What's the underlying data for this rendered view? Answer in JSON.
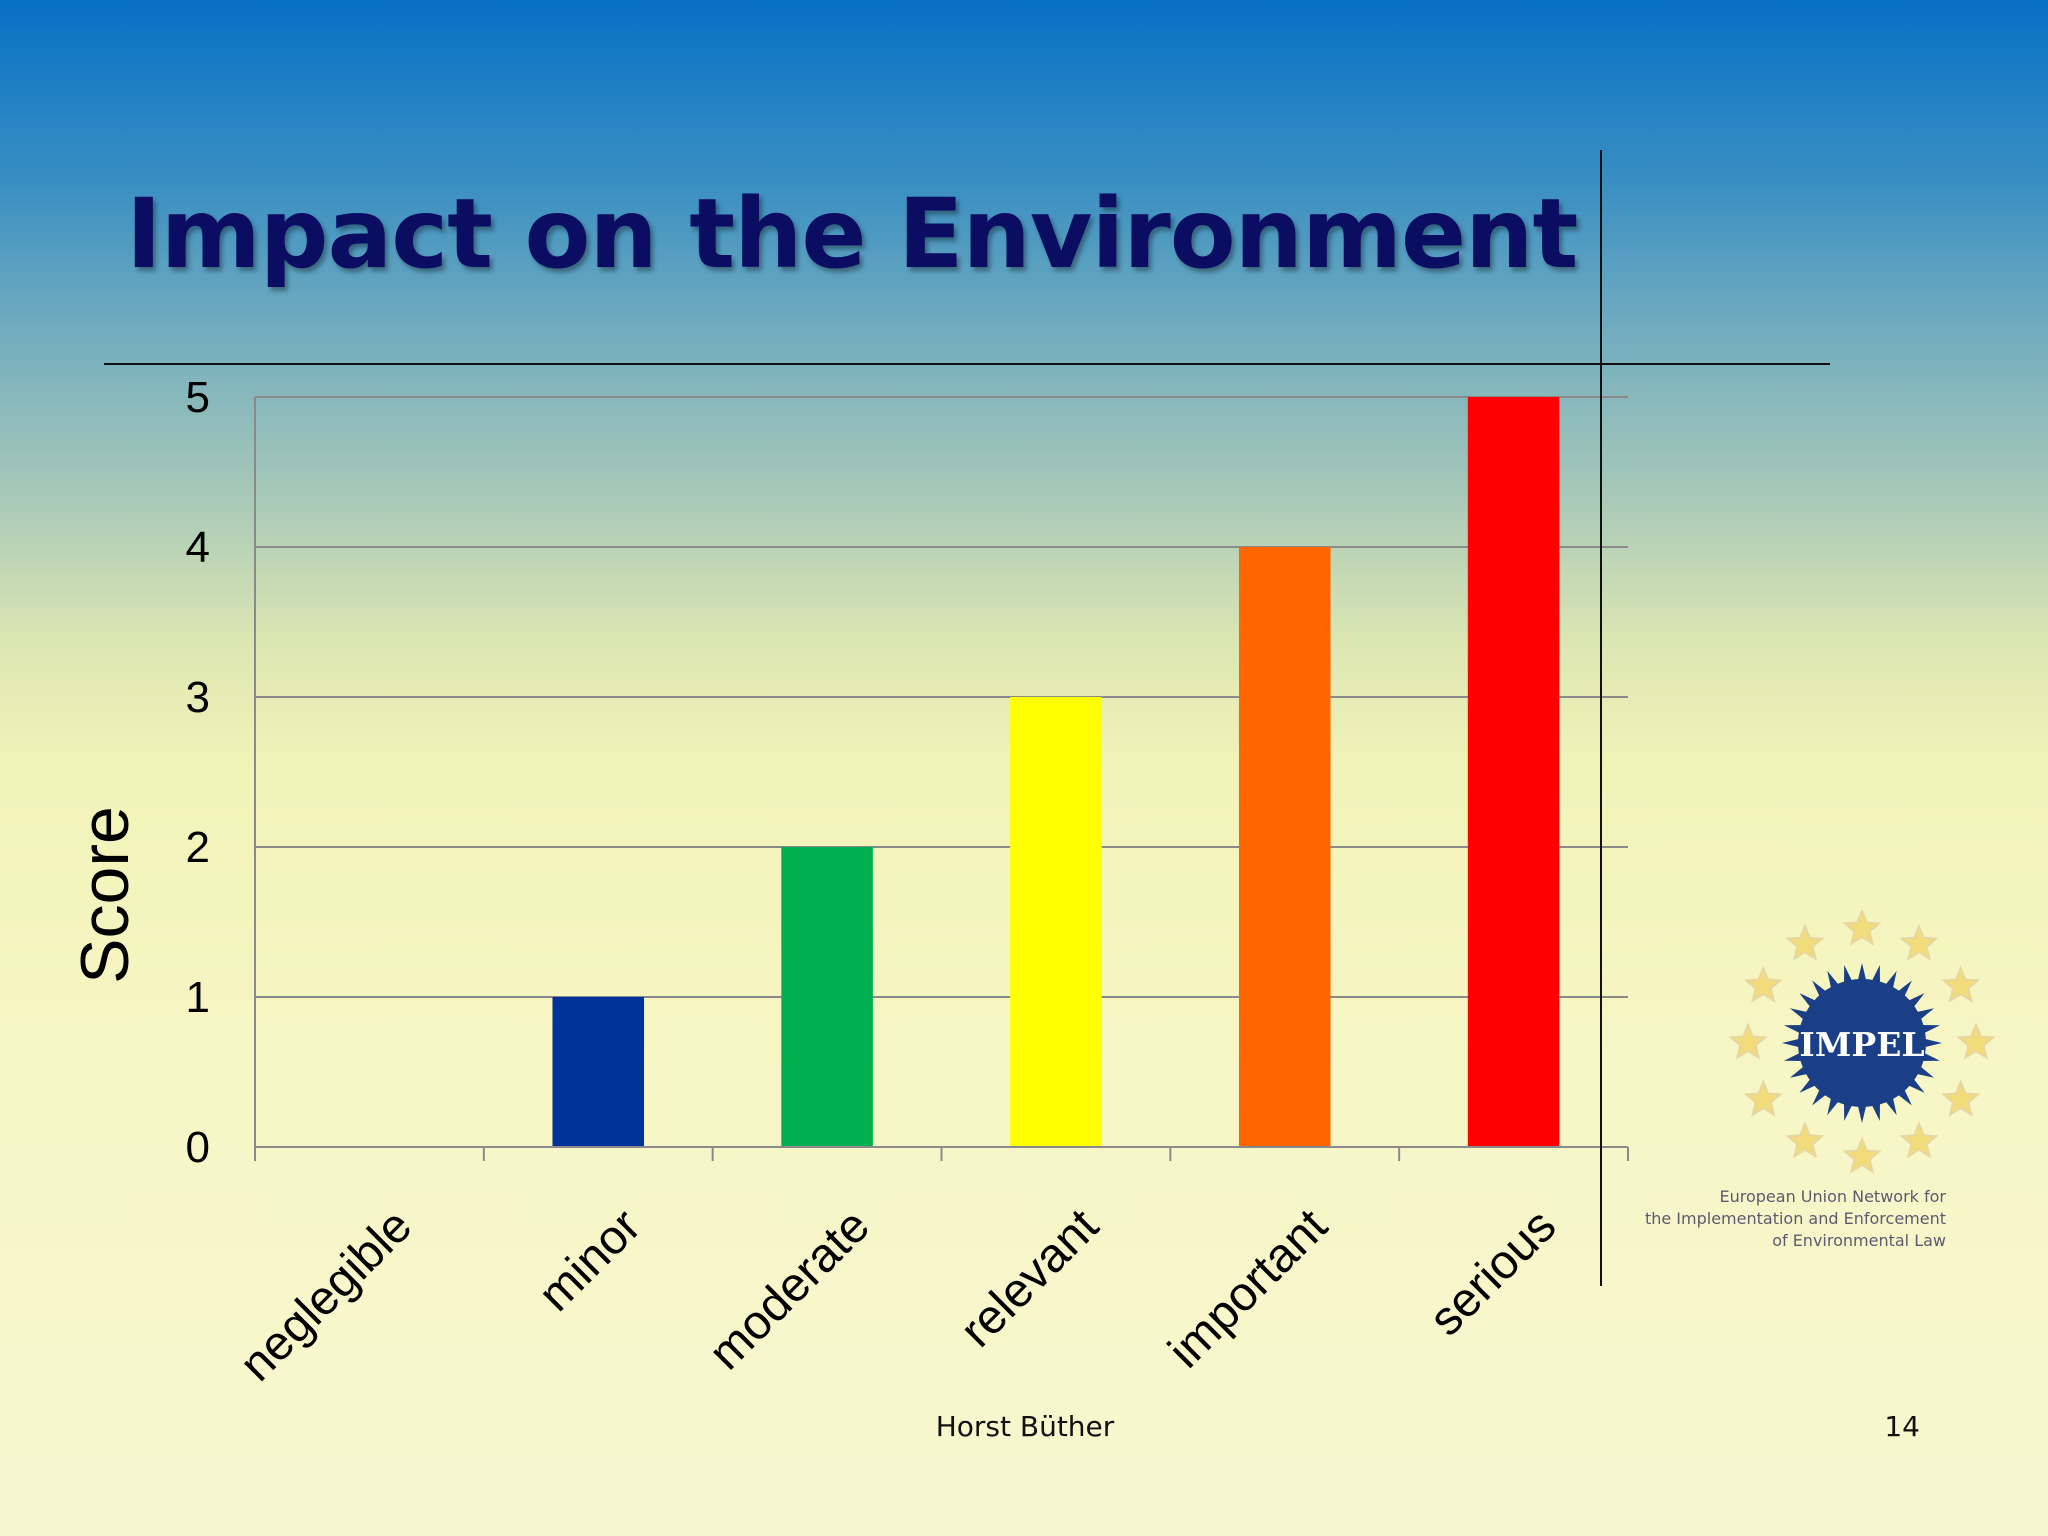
{
  "slide": {
    "title": "Impact on the Environment",
    "footer_author": "Horst Büther",
    "page_number": "14"
  },
  "logo": {
    "name": "IMPEL",
    "org_lines": [
      "European Union Network for",
      "the Implementation and Enforcement",
      "of Environmental Law"
    ]
  },
  "chart_data": {
    "type": "bar",
    "categories": [
      "neglegible",
      "minor",
      "moderate",
      "relevant",
      "important",
      "serious"
    ],
    "values": [
      0,
      1,
      2,
      3,
      4,
      5
    ],
    "colors": [
      "#808080",
      "#003399",
      "#00b050",
      "#ffff00",
      "#ff6600",
      "#ff0000"
    ],
    "ylabel": "Score",
    "ylim": [
      0,
      5
    ],
    "yticks": [
      0,
      1,
      2,
      3,
      4,
      5
    ],
    "grid": true,
    "legend": "none"
  }
}
